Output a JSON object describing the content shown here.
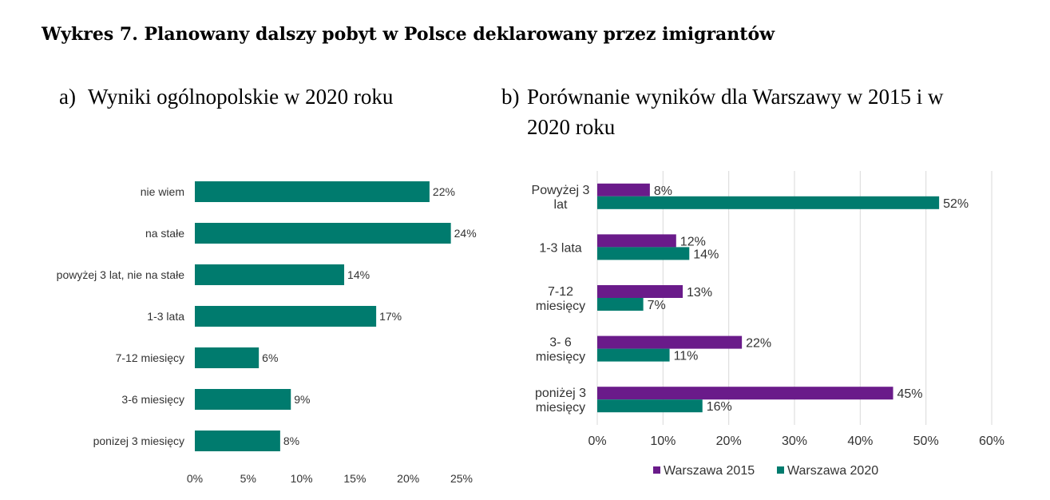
{
  "figure_title": "Wykres 7. Planowany dalszy pobyt w Polsce deklarowany przez imigrantów",
  "panel_a": {
    "letter": "a)",
    "title": "Wyniki ogólnopolskie w 2020 roku"
  },
  "panel_b": {
    "letter": "b)",
    "title_line1": "Porównanie wyników dla Warszawy w 2015 i w",
    "title_line2": "2020 roku"
  },
  "chart_data": [
    {
      "type": "bar",
      "orientation": "horizontal",
      "title": "",
      "xlabel": "",
      "ylabel": "",
      "categories": [
        "nie wiem",
        "na stałe",
        "powyżej 3 lat, nie na stałe",
        "1-3 lata",
        "7-12 miesięcy",
        "3-6 miesięcy",
        "ponizej 3 miesięcy"
      ],
      "values": [
        22,
        24,
        14,
        17,
        6,
        9,
        8
      ],
      "data_labels": [
        "22%",
        "24%",
        "14%",
        "17%",
        "6%",
        "9%",
        "8%"
      ],
      "xlim": [
        0,
        25
      ],
      "x_ticks": [
        0,
        5,
        10,
        15,
        20,
        25
      ],
      "x_tick_labels": [
        "0%",
        "5%",
        "10%",
        "15%",
        "20%",
        "25%"
      ],
      "bar_color": "#007B6E",
      "grid": false
    },
    {
      "type": "bar",
      "orientation": "horizontal",
      "title": "",
      "xlabel": "",
      "ylabel": "",
      "categories": [
        [
          "Powyżej 3",
          "lat"
        ],
        [
          "1-3 lata"
        ],
        [
          "7-12",
          "miesięcy"
        ],
        [
          "3- 6",
          "miesięcy"
        ],
        [
          "poniżej 3",
          "miesięcy"
        ]
      ],
      "series": [
        {
          "name": "Warszawa 2015",
          "color": "#6A1B8A",
          "values": [
            8,
            12,
            13,
            22,
            45
          ],
          "data_labels": [
            "8%",
            "12%",
            "13%",
            "22%",
            "45%"
          ]
        },
        {
          "name": "Warszawa 2020",
          "color": "#007B6E",
          "values": [
            52,
            14,
            7,
            11,
            16
          ],
          "data_labels": [
            "52%",
            "14%",
            "7%",
            "11%",
            "16%"
          ]
        }
      ],
      "xlim": [
        0,
        60
      ],
      "x_ticks": [
        0,
        10,
        20,
        30,
        40,
        50,
        60
      ],
      "x_tick_labels": [
        "0%",
        "10%",
        "20%",
        "30%",
        "40%",
        "50%",
        "60%"
      ],
      "grid": true,
      "legend_position": "bottom"
    }
  ]
}
